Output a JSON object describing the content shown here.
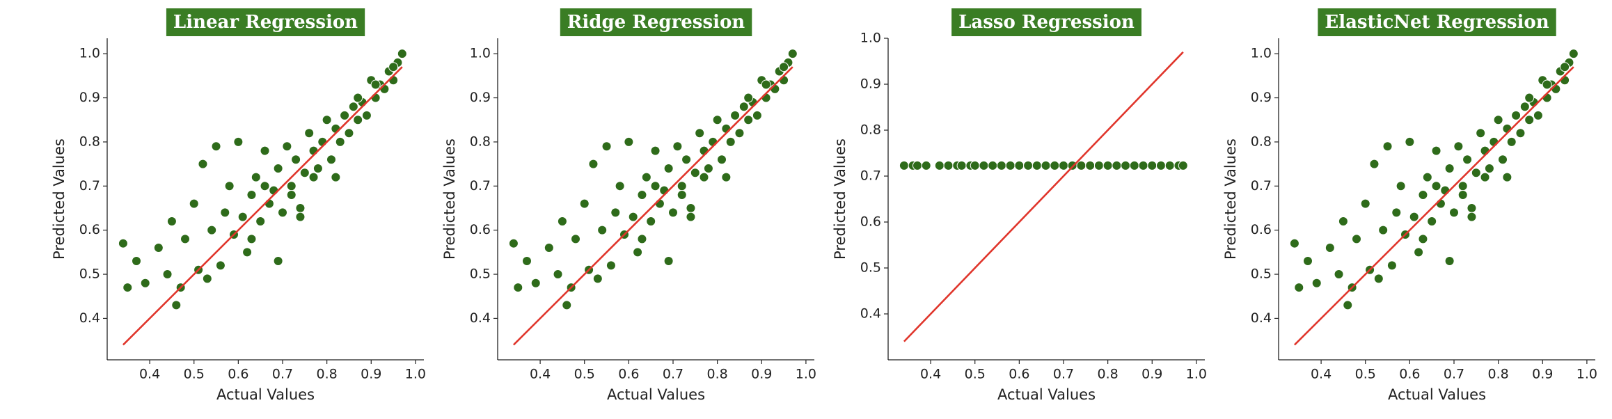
{
  "chart_data": [
    {
      "type": "scatter",
      "title": "Linear Regression",
      "xlabel": "Actual Values",
      "ylabel": "Predicted Values",
      "xlim": [
        0.304,
        1.019
      ],
      "ylim": [
        0.306,
        1.035
      ],
      "xticks": [
        0.4,
        0.5,
        0.6,
        0.7,
        0.8,
        0.9,
        {
          "value": 1,
          "label": "1.0"
        }
      ],
      "yticks": [
        0.4,
        0.5,
        0.6,
        0.7,
        0.8,
        0.9,
        {
          "value": 1,
          "label": "1.0"
        }
      ],
      "color": "#2e6b1a",
      "x": [
        0.34,
        0.35,
        0.37,
        0.39,
        0.42,
        0.44,
        0.45,
        0.46,
        0.47,
        0.48,
        0.5,
        0.51,
        0.52,
        0.53,
        0.54,
        0.55,
        0.56,
        0.57,
        0.58,
        0.59,
        0.6,
        0.61,
        0.62,
        0.63,
        0.64,
        0.65,
        0.66,
        0.67,
        0.68,
        0.69,
        0.7,
        0.71,
        0.72,
        0.73,
        0.74,
        0.75,
        0.76,
        0.77,
        0.78,
        0.79,
        0.8,
        0.81,
        0.82,
        0.83,
        0.84,
        0.85,
        0.86,
        0.87,
        0.88,
        0.89,
        0.9,
        0.91,
        0.92,
        0.93,
        0.94,
        0.95,
        0.96,
        0.97,
        0.63,
        0.66,
        0.69,
        0.72,
        0.74,
        0.77,
        0.82,
        0.87,
        0.91,
        0.95
      ],
      "y": [
        0.57,
        0.47,
        0.53,
        0.48,
        0.56,
        0.5,
        0.62,
        0.43,
        0.47,
        0.58,
        0.66,
        0.51,
        0.75,
        0.49,
        0.6,
        0.79,
        0.52,
        0.64,
        0.7,
        0.59,
        0.8,
        0.63,
        0.55,
        0.68,
        0.72,
        0.62,
        0.78,
        0.66,
        0.69,
        0.74,
        0.64,
        0.79,
        0.7,
        0.76,
        0.65,
        0.73,
        0.82,
        0.78,
        0.74,
        0.8,
        0.85,
        0.76,
        0.83,
        0.8,
        0.86,
        0.82,
        0.88,
        0.85,
        0.89,
        0.86,
        0.94,
        0.9,
        0.93,
        0.92,
        0.96,
        0.94,
        0.98,
        1.0,
        0.58,
        0.7,
        0.53,
        0.68,
        0.63,
        0.72,
        0.72,
        0.9,
        0.93,
        0.97
      ],
      "line": {
        "color": "#e0352b",
        "x": [
          0.34,
          0.97
        ],
        "y": [
          0.34,
          0.97
        ]
      }
    },
    {
      "type": "scatter",
      "title": "Ridge Regression",
      "xlabel": "Actual Values",
      "ylabel": "Predicted Values",
      "xlim": [
        0.304,
        1.019
      ],
      "ylim": [
        0.306,
        1.035
      ],
      "xticks": [
        0.4,
        0.5,
        0.6,
        0.7,
        0.8,
        0.9,
        {
          "value": 1,
          "label": "1.0"
        }
      ],
      "yticks": [
        0.4,
        0.5,
        0.6,
        0.7,
        0.8,
        0.9,
        {
          "value": 1,
          "label": "1.0"
        }
      ],
      "color": "#2e6b1a",
      "x": [
        0.34,
        0.35,
        0.37,
        0.39,
        0.42,
        0.44,
        0.45,
        0.46,
        0.47,
        0.48,
        0.5,
        0.51,
        0.52,
        0.53,
        0.54,
        0.55,
        0.56,
        0.57,
        0.58,
        0.59,
        0.6,
        0.61,
        0.62,
        0.63,
        0.64,
        0.65,
        0.66,
        0.67,
        0.68,
        0.69,
        0.7,
        0.71,
        0.72,
        0.73,
        0.74,
        0.75,
        0.76,
        0.77,
        0.78,
        0.79,
        0.8,
        0.81,
        0.82,
        0.83,
        0.84,
        0.85,
        0.86,
        0.87,
        0.88,
        0.89,
        0.9,
        0.91,
        0.92,
        0.93,
        0.94,
        0.95,
        0.96,
        0.97,
        0.63,
        0.66,
        0.69,
        0.72,
        0.74,
        0.77,
        0.82,
        0.87,
        0.91,
        0.95
      ],
      "y": [
        0.57,
        0.47,
        0.53,
        0.48,
        0.56,
        0.5,
        0.62,
        0.43,
        0.47,
        0.58,
        0.66,
        0.51,
        0.75,
        0.49,
        0.6,
        0.79,
        0.52,
        0.64,
        0.7,
        0.59,
        0.8,
        0.63,
        0.55,
        0.68,
        0.72,
        0.62,
        0.78,
        0.66,
        0.69,
        0.74,
        0.64,
        0.79,
        0.7,
        0.76,
        0.65,
        0.73,
        0.82,
        0.78,
        0.74,
        0.8,
        0.85,
        0.76,
        0.83,
        0.8,
        0.86,
        0.82,
        0.88,
        0.85,
        0.89,
        0.86,
        0.94,
        0.9,
        0.93,
        0.92,
        0.96,
        0.94,
        0.98,
        1.0,
        0.58,
        0.7,
        0.53,
        0.68,
        0.63,
        0.72,
        0.72,
        0.9,
        0.93,
        0.97
      ],
      "line": {
        "color": "#e0352b",
        "x": [
          0.34,
          0.97
        ],
        "y": [
          0.34,
          0.97
        ]
      }
    },
    {
      "type": "scatter",
      "title": "Lasso Regression",
      "xlabel": "Actual Values",
      "ylabel": "Predicted Values",
      "xlim": [
        0.304,
        1.019
      ],
      "ylim": [
        0.3,
        1.0
      ],
      "xticks": [
        0.4,
        0.5,
        0.6,
        0.7,
        0.8,
        0.9,
        {
          "value": 1,
          "label": "1.0"
        }
      ],
      "yticks": [
        0.4,
        0.5,
        0.6,
        0.7,
        0.8,
        0.9,
        {
          "value": 1,
          "label": "1.0"
        }
      ],
      "color": "#2e6b1a",
      "x": [
        0.34,
        0.36,
        0.37,
        0.39,
        0.42,
        0.44,
        0.46,
        0.47,
        0.49,
        0.5,
        0.52,
        0.54,
        0.56,
        0.58,
        0.6,
        0.62,
        0.64,
        0.66,
        0.68,
        0.7,
        0.72,
        0.74,
        0.76,
        0.78,
        0.8,
        0.82,
        0.84,
        0.86,
        0.88,
        0.9,
        0.92,
        0.94,
        0.96,
        0.97
      ],
      "y": [
        0.723,
        0.723,
        0.723,
        0.723,
        0.723,
        0.723,
        0.723,
        0.723,
        0.723,
        0.723,
        0.723,
        0.723,
        0.723,
        0.723,
        0.723,
        0.723,
        0.723,
        0.723,
        0.723,
        0.723,
        0.723,
        0.723,
        0.723,
        0.723,
        0.723,
        0.723,
        0.723,
        0.723,
        0.723,
        0.723,
        0.723,
        0.723,
        0.723,
        0.723
      ],
      "line": {
        "color": "#e0352b",
        "x": [
          0.34,
          0.97
        ],
        "y": [
          0.34,
          0.97
        ]
      }
    },
    {
      "type": "scatter",
      "title": "ElasticNet Regression",
      "xlabel": "Actual Values",
      "ylabel": "Predicted Values",
      "xlim": [
        0.304,
        1.019
      ],
      "ylim": [
        0.306,
        1.035
      ],
      "xticks": [
        0.4,
        0.5,
        0.6,
        0.7,
        0.8,
        0.9,
        {
          "value": 1,
          "label": "1.0"
        }
      ],
      "yticks": [
        0.4,
        0.5,
        0.6,
        0.7,
        0.8,
        0.9,
        {
          "value": 1,
          "label": "1.0"
        }
      ],
      "color": "#2e6b1a",
      "x": [
        0.34,
        0.35,
        0.37,
        0.39,
        0.42,
        0.44,
        0.45,
        0.46,
        0.47,
        0.48,
        0.5,
        0.51,
        0.52,
        0.53,
        0.54,
        0.55,
        0.56,
        0.57,
        0.58,
        0.59,
        0.6,
        0.61,
        0.62,
        0.63,
        0.64,
        0.65,
        0.66,
        0.67,
        0.68,
        0.69,
        0.7,
        0.71,
        0.72,
        0.73,
        0.74,
        0.75,
        0.76,
        0.77,
        0.78,
        0.79,
        0.8,
        0.81,
        0.82,
        0.83,
        0.84,
        0.85,
        0.86,
        0.87,
        0.88,
        0.89,
        0.9,
        0.91,
        0.92,
        0.93,
        0.94,
        0.95,
        0.96,
        0.97,
        0.63,
        0.66,
        0.69,
        0.72,
        0.74,
        0.77,
        0.82,
        0.87,
        0.91,
        0.95
      ],
      "y": [
        0.57,
        0.47,
        0.53,
        0.48,
        0.56,
        0.5,
        0.62,
        0.43,
        0.47,
        0.58,
        0.66,
        0.51,
        0.75,
        0.49,
        0.6,
        0.79,
        0.52,
        0.64,
        0.7,
        0.59,
        0.8,
        0.63,
        0.55,
        0.68,
        0.72,
        0.62,
        0.78,
        0.66,
        0.69,
        0.74,
        0.64,
        0.79,
        0.7,
        0.76,
        0.65,
        0.73,
        0.82,
        0.78,
        0.74,
        0.8,
        0.85,
        0.76,
        0.83,
        0.8,
        0.86,
        0.82,
        0.88,
        0.85,
        0.89,
        0.86,
        0.94,
        0.9,
        0.93,
        0.92,
        0.96,
        0.94,
        0.98,
        1.0,
        0.58,
        0.7,
        0.53,
        0.68,
        0.63,
        0.72,
        0.72,
        0.9,
        0.93,
        0.97
      ],
      "line": {
        "color": "#e0352b",
        "x": [
          0.34,
          0.97
        ],
        "y": [
          0.34,
          0.97
        ]
      }
    }
  ]
}
